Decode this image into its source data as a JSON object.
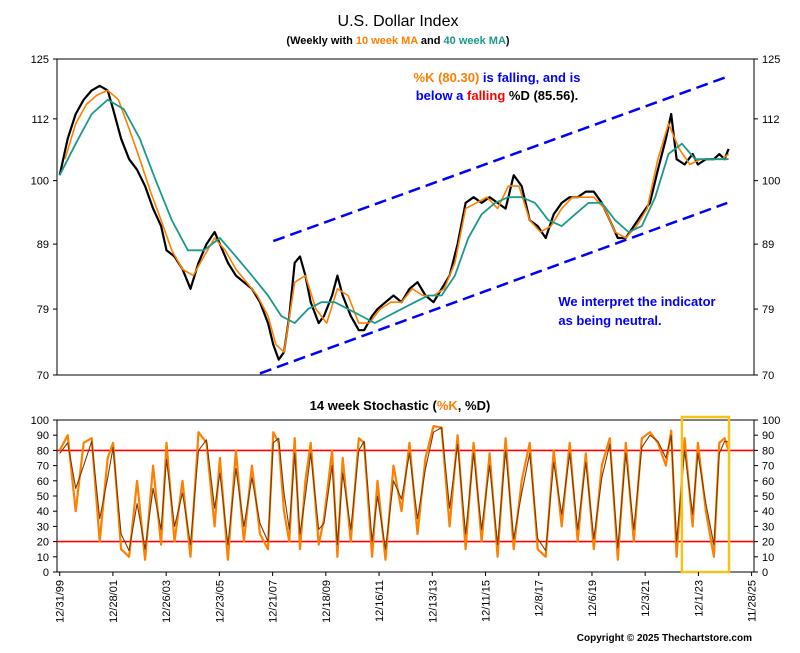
{
  "colors": {
    "price": "#000000",
    "k_line": "#ff7f00",
    "d_line": "#7a3a00",
    "ma10": "#ff7f00",
    "ma40": "#1a9a8a",
    "channel": "#0000ff",
    "stoch_ref": "#ff0000",
    "highlight_box": "#f0c419",
    "annot_k": "#ff7f00",
    "annot_blue": "#0000ff",
    "annot_red": "#ff0000",
    "annot_black": "#000000"
  },
  "chart_data": [
    {
      "type": "line",
      "title": "U.S. Dollar Index",
      "subtitle": {
        "open": "(Weekly with ",
        "ma10": "10 week MA",
        "and": " and ",
        "ma40": "40 week MA",
        "close": ")"
      },
      "yscale": "log",
      "ylim": [
        70,
        125
      ],
      "yticks": [
        "125",
        "112",
        "100",
        "89",
        "79",
        "70"
      ],
      "x_dates": [
        "12/31/99",
        "12/28/01",
        "12/26/03",
        "12/23/05",
        "12/21/07",
        "12/18/09",
        "12/16/11",
        "12/13/13",
        "12/11/15",
        "12/8/17",
        "12/6/19",
        "12/3/21",
        "12/1/23",
        "11/28/25"
      ],
      "xlim": [
        1999.9,
        2026.0
      ],
      "series": [
        {
          "style": "price",
          "x": [
            2000.0,
            2000.3,
            2000.6,
            2000.9,
            2001.2,
            2001.5,
            2001.8,
            2002.0,
            2002.3,
            2002.6,
            2002.9,
            2003.2,
            2003.5,
            2003.8,
            2004.0,
            2004.3,
            2004.6,
            2004.9,
            2005.2,
            2005.5,
            2005.8,
            2006.0,
            2006.3,
            2006.6,
            2006.9,
            2007.2,
            2007.5,
            2007.8,
            2008.0,
            2008.2,
            2008.4,
            2008.6,
            2008.8,
            2009.0,
            2009.2,
            2009.4,
            2009.7,
            2009.9,
            2010.2,
            2010.4,
            2010.6,
            2010.9,
            2011.2,
            2011.4,
            2011.7,
            2011.9,
            2012.2,
            2012.5,
            2012.8,
            2013.1,
            2013.4,
            2013.7,
            2014.0,
            2014.3,
            2014.6,
            2014.9,
            2015.2,
            2015.5,
            2015.8,
            2016.1,
            2016.4,
            2016.7,
            2017.0,
            2017.3,
            2017.6,
            2017.9,
            2018.2,
            2018.5,
            2018.8,
            2019.1,
            2019.4,
            2019.7,
            2020.0,
            2020.3,
            2020.6,
            2020.9,
            2021.2,
            2021.5,
            2021.8,
            2022.1,
            2022.4,
            2022.7,
            2022.9,
            2023.1,
            2023.4,
            2023.7,
            2023.9,
            2024.2,
            2024.5,
            2024.7,
            2024.9,
            2025.05
          ],
          "values": [
            101,
            108,
            113,
            116,
            118,
            119,
            118,
            114,
            108,
            104,
            102,
            99,
            95,
            92,
            88,
            87,
            85,
            82,
            86,
            89,
            91,
            89,
            86,
            84,
            83,
            82,
            80,
            77,
            74,
            72,
            73,
            78,
            86,
            87,
            84,
            80,
            77,
            78,
            81,
            84,
            81,
            78,
            76,
            76,
            78,
            79,
            80,
            81,
            80,
            82,
            83,
            81,
            80,
            82,
            84,
            89,
            96,
            97,
            96,
            97,
            96,
            95,
            101,
            99,
            93,
            92,
            90,
            94,
            96,
            97,
            97,
            98,
            98,
            96,
            93,
            90,
            90,
            92,
            94,
            96,
            102,
            108,
            113,
            104,
            103,
            105,
            103,
            104,
            104,
            105,
            104,
            106
          ]
        },
        {
          "name": "10 week MA",
          "style": "ma10",
          "x": [
            2000.2,
            2000.6,
            2001.0,
            2001.4,
            2001.8,
            2002.2,
            2002.6,
            2003.0,
            2003.4,
            2003.8,
            2004.2,
            2004.6,
            2005.0,
            2005.4,
            2005.8,
            2006.2,
            2006.6,
            2007.0,
            2007.4,
            2007.8,
            2008.1,
            2008.4,
            2008.8,
            2009.2,
            2009.6,
            2010.0,
            2010.4,
            2010.8,
            2011.2,
            2011.6,
            2012.0,
            2012.4,
            2012.8,
            2013.2,
            2013.6,
            2014.0,
            2014.4,
            2014.8,
            2015.2,
            2015.6,
            2016.0,
            2016.4,
            2016.8,
            2017.2,
            2017.6,
            2018.0,
            2018.4,
            2018.8,
            2019.2,
            2019.6,
            2020.0,
            2020.4,
            2020.8,
            2021.2,
            2021.6,
            2022.0,
            2022.4,
            2022.8,
            2023.2,
            2023.6,
            2024.0,
            2024.4,
            2024.8,
            2025.05
          ],
          "values": [
            104,
            111,
            115,
            117,
            118,
            116,
            110,
            104,
            98,
            93,
            88,
            85,
            84,
            87,
            90,
            88,
            85,
            83,
            81,
            78,
            74,
            73,
            83,
            84,
            79,
            77,
            82,
            81,
            77,
            77,
            79,
            80,
            80,
            82,
            81,
            81,
            82,
            86,
            95,
            96,
            97,
            95,
            99,
            99,
            93,
            91,
            92,
            95,
            97,
            97,
            97,
            95,
            91,
            90,
            92,
            95,
            104,
            111,
            106,
            103,
            104,
            104,
            104,
            105
          ]
        },
        {
          "name": "40 week MA",
          "style": "ma40",
          "x": [
            2000.0,
            2000.6,
            2001.2,
            2001.8,
            2002.4,
            2003.0,
            2003.6,
            2004.2,
            2004.8,
            2005.4,
            2006.0,
            2006.6,
            2007.2,
            2007.8,
            2008.3,
            2008.8,
            2009.3,
            2009.8,
            2010.3,
            2010.8,
            2011.3,
            2011.8,
            2012.3,
            2012.8,
            2013.3,
            2013.8,
            2014.3,
            2014.8,
            2015.3,
            2015.8,
            2016.3,
            2016.8,
            2017.3,
            2017.8,
            2018.3,
            2018.8,
            2019.3,
            2019.8,
            2020.3,
            2020.8,
            2021.3,
            2021.8,
            2022.3,
            2022.8,
            2023.3,
            2023.8,
            2024.3,
            2024.8,
            2025.05
          ],
          "values": [
            101,
            107,
            113,
            116,
            114,
            108,
            100,
            93,
            88,
            88,
            90,
            87,
            84,
            81,
            78,
            77,
            79,
            80,
            80,
            79,
            78,
            77,
            78,
            79,
            80,
            81,
            81,
            84,
            90,
            94,
            96,
            97,
            97,
            96,
            93,
            92,
            94,
            96,
            96,
            93,
            91,
            92,
            97,
            105,
            107,
            104,
            104,
            104,
            104
          ]
        },
        {
          "name": "channel upper",
          "style": "channel",
          "x": [
            2008.0,
            2025.0
          ],
          "values": [
            89.5,
            121
          ]
        },
        {
          "name": "channel lower",
          "style": "channel",
          "x": [
            2007.5,
            2025.0
          ],
          "values": [
            70.2,
            96
          ]
        }
      ],
      "annotations": {
        "line1": [
          {
            "text": "%K (80.30)",
            "color": "annot_k"
          },
          {
            "text": " is falling, and is",
            "color": "annot_blue"
          }
        ],
        "line2": [
          {
            "text": "below a ",
            "color": "annot_blue"
          },
          {
            "text": "falling",
            "color": "annot_red"
          },
          {
            "text": " %D (85.56).",
            "color": "annot_black"
          }
        ],
        "interpretation": [
          "We interpret the indicator",
          "as being neutral."
        ]
      }
    },
    {
      "type": "line",
      "title": {
        "open": "14 week Stochastic (",
        "k": "%K",
        "sep": ", ",
        "d": "%D",
        "close": ")"
      },
      "ylim": [
        0,
        100
      ],
      "yticks": [
        "100",
        "90",
        "80",
        "70",
        "60",
        "50",
        "40",
        "30",
        "20",
        "10",
        "0"
      ],
      "reference_lines": [
        80,
        20
      ],
      "highlight_range_x": [
        2023.3,
        2026.0
      ],
      "series": [
        {
          "name": "%K",
          "style": "k_line",
          "x": [
            2000.0,
            2000.3,
            2000.6,
            2000.9,
            2001.2,
            2001.5,
            2001.8,
            2002.0,
            2002.3,
            2002.6,
            2002.9,
            2003.2,
            2003.5,
            2003.8,
            2004.0,
            2004.3,
            2004.6,
            2004.9,
            2005.2,
            2005.5,
            2005.8,
            2006.0,
            2006.3,
            2006.6,
            2006.9,
            2007.2,
            2007.5,
            2007.8,
            2008.0,
            2008.2,
            2008.4,
            2008.6,
            2008.8,
            2009.0,
            2009.2,
            2009.4,
            2009.7,
            2009.9,
            2010.2,
            2010.4,
            2010.6,
            2010.9,
            2011.2,
            2011.4,
            2011.7,
            2011.9,
            2012.2,
            2012.5,
            2012.8,
            2013.1,
            2013.4,
            2013.7,
            2014.0,
            2014.3,
            2014.6,
            2014.9,
            2015.2,
            2015.5,
            2015.8,
            2016.1,
            2016.4,
            2016.7,
            2017.0,
            2017.3,
            2017.6,
            2017.9,
            2018.2,
            2018.5,
            2018.8,
            2019.1,
            2019.4,
            2019.7,
            2020.0,
            2020.3,
            2020.6,
            2020.9,
            2021.2,
            2021.5,
            2021.8,
            2022.1,
            2022.4,
            2022.7,
            2022.9,
            2023.1,
            2023.4,
            2023.7,
            2023.9,
            2024.2,
            2024.5,
            2024.7,
            2024.9,
            2025.05
          ],
          "values": [
            80,
            90,
            40,
            85,
            88,
            20,
            75,
            85,
            15,
            10,
            60,
            8,
            70,
            18,
            85,
            20,
            60,
            10,
            92,
            85,
            30,
            75,
            8,
            80,
            20,
            70,
            25,
            15,
            92,
            85,
            40,
            20,
            88,
            15,
            60,
            85,
            18,
            35,
            80,
            10,
            75,
            20,
            88,
            85,
            10,
            60,
            8,
            70,
            40,
            85,
            25,
            75,
            96,
            95,
            30,
            90,
            15,
            85,
            20,
            78,
            10,
            88,
            15,
            60,
            85,
            15,
            10,
            80,
            30,
            85,
            20,
            78,
            15,
            70,
            88,
            8,
            85,
            20,
            88,
            92,
            85,
            70,
            93,
            10,
            88,
            30,
            85,
            40,
            10,
            85,
            88,
            80
          ]
        },
        {
          "name": "%D",
          "style": "d_line",
          "x": [
            2000.0,
            2000.3,
            2000.6,
            2000.9,
            2001.2,
            2001.5,
            2001.8,
            2002.0,
            2002.3,
            2002.6,
            2002.9,
            2003.2,
            2003.5,
            2003.8,
            2004.0,
            2004.3,
            2004.6,
            2004.9,
            2005.2,
            2005.5,
            2005.8,
            2006.0,
            2006.3,
            2006.6,
            2006.9,
            2007.2,
            2007.5,
            2007.8,
            2008.0,
            2008.2,
            2008.4,
            2008.6,
            2008.8,
            2009.0,
            2009.2,
            2009.4,
            2009.7,
            2009.9,
            2010.2,
            2010.4,
            2010.6,
            2010.9,
            2011.2,
            2011.4,
            2011.7,
            2011.9,
            2012.2,
            2012.5,
            2012.8,
            2013.1,
            2013.4,
            2013.7,
            2014.0,
            2014.3,
            2014.6,
            2014.9,
            2015.2,
            2015.5,
            2015.8,
            2016.1,
            2016.4,
            2016.7,
            2017.0,
            2017.3,
            2017.6,
            2017.9,
            2018.2,
            2018.5,
            2018.8,
            2019.1,
            2019.4,
            2019.7,
            2020.0,
            2020.3,
            2020.6,
            2020.9,
            2021.2,
            2021.5,
            2021.8,
            2022.1,
            2022.4,
            2022.7,
            2022.9,
            2023.1,
            2023.4,
            2023.7,
            2023.9,
            2024.2,
            2024.5,
            2024.7,
            2024.9,
            2025.05
          ],
          "values": [
            78,
            85,
            55,
            70,
            86,
            35,
            62,
            82,
            25,
            14,
            45,
            15,
            55,
            28,
            74,
            30,
            52,
            18,
            80,
            87,
            42,
            65,
            18,
            68,
            30,
            62,
            32,
            20,
            85,
            88,
            52,
            28,
            78,
            25,
            50,
            78,
            28,
            32,
            70,
            18,
            65,
            28,
            80,
            86,
            20,
            50,
            15,
            60,
            48,
            78,
            35,
            68,
            92,
            95,
            42,
            84,
            25,
            78,
            28,
            70,
            18,
            80,
            22,
            52,
            78,
            22,
            14,
            72,
            38,
            78,
            28,
            72,
            22,
            62,
            84,
            16,
            78,
            28,
            82,
            90,
            86,
            75,
            90,
            20,
            80,
            38,
            78,
            45,
            18,
            78,
            86,
            85.56
          ]
        }
      ]
    }
  ],
  "copyright": "Copyright © 2025 Thechartstore.com"
}
